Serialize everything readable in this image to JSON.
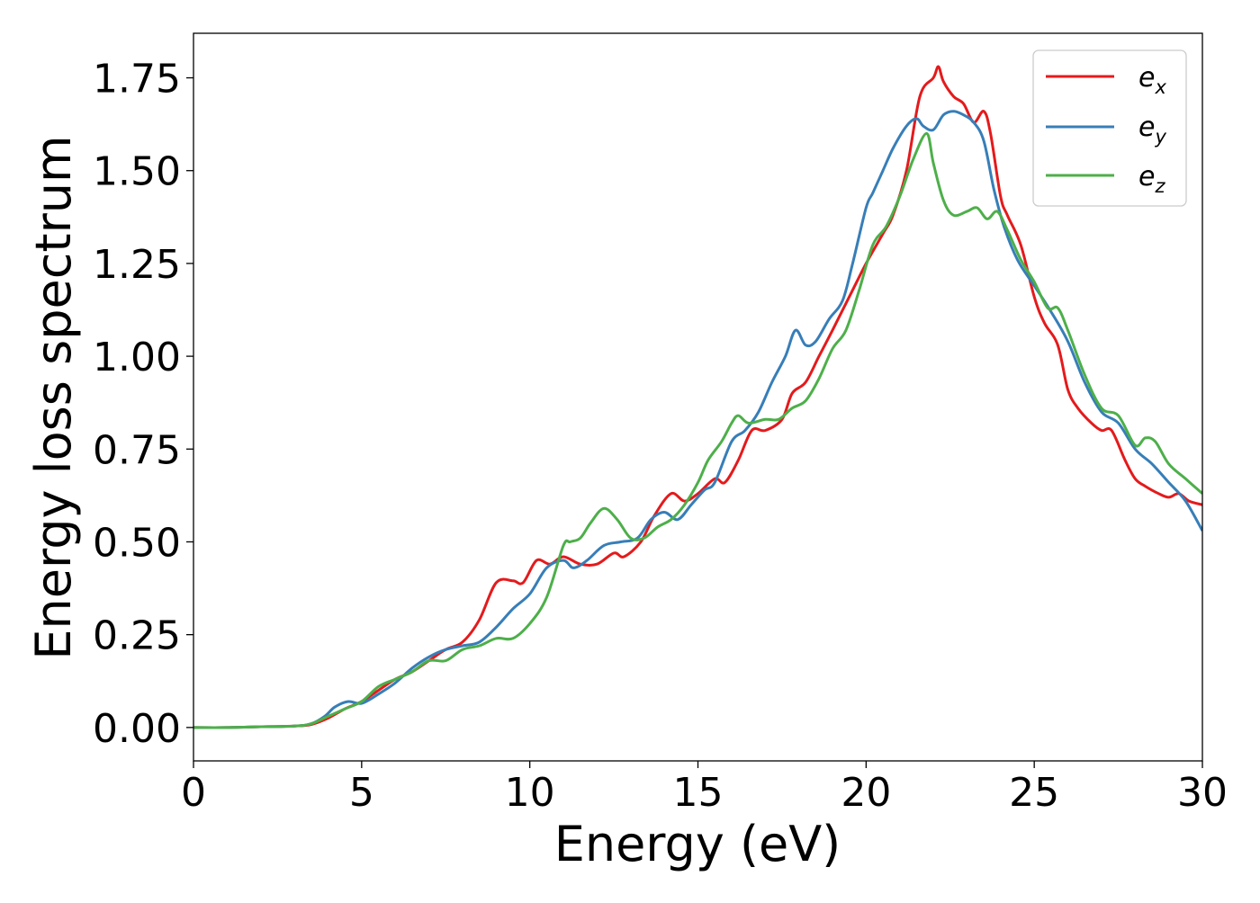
{
  "chart_data": {
    "type": "line",
    "title": "",
    "xlabel": "Energy (eV)",
    "ylabel": "Energy loss spectrum",
    "xlim": [
      0,
      30
    ],
    "ylim": [
      -0.09,
      1.87
    ],
    "xticks": [
      0,
      5,
      10,
      15,
      20,
      25,
      30
    ],
    "xtick_labels": [
      "0",
      "5",
      "10",
      "15",
      "20",
      "25",
      "30"
    ],
    "yticks": [
      0,
      0.25,
      0.5,
      0.75,
      1.0,
      1.25,
      1.5,
      1.75
    ],
    "ytick_labels": [
      "0.00",
      "0.25",
      "0.50",
      "0.75",
      "1.00",
      "1.25",
      "1.50",
      "1.75"
    ],
    "grid": false,
    "legend_position": "top-right",
    "series": [
      {
        "name": "e_x",
        "label_main": "e",
        "label_sub": "x",
        "color": "#e41a1c",
        "x": [
          0,
          1,
          2,
          3,
          3.5,
          4,
          4.5,
          5,
          5.5,
          6,
          6.5,
          7,
          7.5,
          8,
          8.5,
          9,
          9.5,
          9.8,
          10.2,
          10.6,
          11,
          11.5,
          12,
          12.5,
          12.8,
          13.3,
          13.7,
          14.2,
          14.6,
          15,
          15.5,
          15.8,
          16.2,
          16.6,
          17,
          17.5,
          17.8,
          18.2,
          18.6,
          19,
          19.5,
          20,
          20.5,
          20.8,
          21.2,
          21.6,
          22,
          22.15,
          22.3,
          22.6,
          22.9,
          23.2,
          23.5,
          23.7,
          24,
          24.2,
          24.6,
          25,
          25.3,
          25.7,
          26,
          26.3,
          26.7,
          27,
          27.3,
          27.7,
          28,
          28.3,
          28.7,
          29,
          29.3,
          29.6,
          30
        ],
        "y": [
          0,
          0,
          0.002,
          0.004,
          0.008,
          0.025,
          0.05,
          0.07,
          0.1,
          0.13,
          0.15,
          0.18,
          0.21,
          0.23,
          0.29,
          0.39,
          0.395,
          0.39,
          0.45,
          0.44,
          0.46,
          0.44,
          0.44,
          0.47,
          0.46,
          0.5,
          0.57,
          0.63,
          0.61,
          0.63,
          0.67,
          0.66,
          0.72,
          0.8,
          0.8,
          0.83,
          0.9,
          0.93,
          1.0,
          1.07,
          1.16,
          1.25,
          1.33,
          1.38,
          1.5,
          1.7,
          1.75,
          1.78,
          1.74,
          1.7,
          1.68,
          1.63,
          1.66,
          1.6,
          1.43,
          1.38,
          1.3,
          1.16,
          1.09,
          1.03,
          0.91,
          0.86,
          0.82,
          0.8,
          0.8,
          0.72,
          0.67,
          0.65,
          0.63,
          0.62,
          0.63,
          0.61,
          0.6
        ]
      },
      {
        "name": "e_y",
        "label_main": "e",
        "label_sub": "y",
        "color": "#377eb8",
        "x": [
          0,
          1,
          2,
          3,
          3.5,
          3.9,
          4.2,
          4.6,
          5,
          5.5,
          6,
          6.5,
          7,
          7.5,
          8,
          8.5,
          9,
          9.5,
          10,
          10.5,
          11,
          11.3,
          11.7,
          12.2,
          12.7,
          13.2,
          13.6,
          14,
          14.4,
          14.8,
          15.2,
          15.5,
          16,
          16.4,
          16.8,
          17.2,
          17.6,
          17.9,
          18.2,
          18.5,
          18.9,
          19.3,
          19.6,
          20,
          20.2,
          20.5,
          20.8,
          21.2,
          21.5,
          21.7,
          22,
          22.3,
          22.6,
          22.9,
          23.2,
          23.5,
          23.8,
          24.1,
          24.5,
          25,
          25.5,
          26,
          26.5,
          27,
          27.5,
          28,
          28.5,
          29,
          29.5,
          30
        ],
        "y": [
          0,
          0,
          0.002,
          0.004,
          0.01,
          0.03,
          0.055,
          0.07,
          0.065,
          0.09,
          0.12,
          0.16,
          0.19,
          0.21,
          0.22,
          0.23,
          0.27,
          0.32,
          0.36,
          0.43,
          0.45,
          0.43,
          0.45,
          0.49,
          0.5,
          0.51,
          0.56,
          0.58,
          0.56,
          0.6,
          0.64,
          0.66,
          0.77,
          0.8,
          0.85,
          0.93,
          1.0,
          1.07,
          1.03,
          1.04,
          1.1,
          1.15,
          1.25,
          1.4,
          1.44,
          1.5,
          1.56,
          1.62,
          1.64,
          1.62,
          1.61,
          1.65,
          1.66,
          1.65,
          1.63,
          1.58,
          1.45,
          1.35,
          1.26,
          1.19,
          1.12,
          1.04,
          0.93,
          0.85,
          0.82,
          0.75,
          0.71,
          0.66,
          0.61,
          0.53
        ]
      },
      {
        "name": "e_z",
        "label_main": "e",
        "label_sub": "z",
        "color": "#4daf4a",
        "x": [
          0,
          1,
          2,
          3,
          3.5,
          4,
          4.5,
          5,
          5.5,
          6,
          6.5,
          7,
          7.5,
          8,
          8.5,
          9,
          9.5,
          10,
          10.5,
          11,
          11.2,
          11.5,
          11.8,
          12.2,
          12.6,
          13,
          13.4,
          13.8,
          14.2,
          14.6,
          15,
          15.3,
          15.7,
          16,
          16.2,
          16.5,
          17,
          17.4,
          17.8,
          18.2,
          18.6,
          19,
          19.4,
          19.8,
          20.2,
          20.6,
          21,
          21.4,
          21.8,
          22,
          22.3,
          22.6,
          23,
          23.3,
          23.6,
          23.9,
          24.2,
          24.6,
          25,
          25.4,
          25.7,
          26,
          26.5,
          27,
          27.5,
          28,
          28.3,
          28.6,
          29,
          29.5,
          30
        ],
        "y": [
          0,
          0,
          0.002,
          0.004,
          0.01,
          0.03,
          0.05,
          0.07,
          0.11,
          0.13,
          0.15,
          0.18,
          0.18,
          0.21,
          0.22,
          0.24,
          0.24,
          0.28,
          0.35,
          0.49,
          0.5,
          0.51,
          0.55,
          0.59,
          0.56,
          0.51,
          0.51,
          0.54,
          0.56,
          0.6,
          0.66,
          0.72,
          0.77,
          0.82,
          0.84,
          0.82,
          0.83,
          0.83,
          0.86,
          0.88,
          0.94,
          1.02,
          1.07,
          1.18,
          1.3,
          1.35,
          1.43,
          1.53,
          1.6,
          1.52,
          1.42,
          1.38,
          1.39,
          1.4,
          1.37,
          1.39,
          1.34,
          1.26,
          1.2,
          1.13,
          1.13,
          1.07,
          0.95,
          0.86,
          0.84,
          0.76,
          0.78,
          0.77,
          0.71,
          0.67,
          0.63
        ]
      }
    ]
  }
}
